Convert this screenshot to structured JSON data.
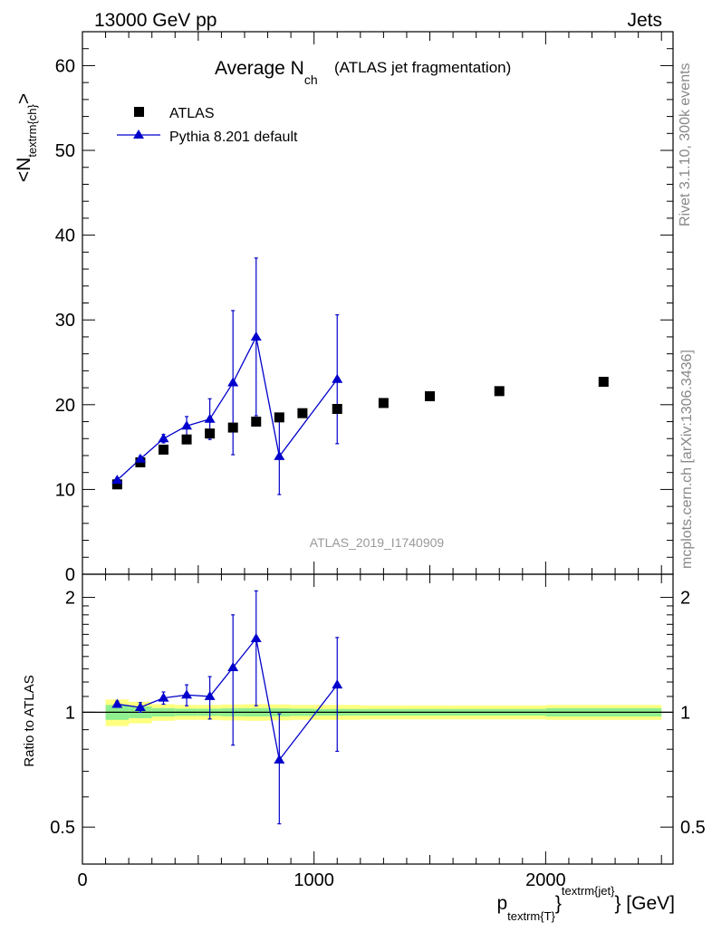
{
  "header": {
    "left": "13000 GeV pp",
    "right": "Jets"
  },
  "side_labels": {
    "rivet": "Rivet 3.1.10,  300k events",
    "mcplots": "mcplots.cern.ch [arXiv:1306.3436]"
  },
  "colors": {
    "data": "#000000",
    "mc": "#0000cc",
    "band_inner": "#8fef8f",
    "band_outer": "#ffff80",
    "analysis_label": "#999999"
  },
  "chart_data": [
    {
      "type": "scatter",
      "panel": "main",
      "title": "Average N",
      "title_sub": "ch",
      "title_note": "(ATLAS jet fragmentation)",
      "ylabel_main": "<N",
      "ylabel_sub": "textrm{ch}",
      "ylabel_end": ">",
      "analysis": "ATLAS_2019_I1740909",
      "xlim": [
        0,
        2550
      ],
      "ylim": [
        0,
        64
      ],
      "y_ticks": [
        "0",
        "10",
        "20",
        "30",
        "40",
        "50",
        "60"
      ],
      "legend_position": "top-left",
      "series": [
        {
          "name": "ATLAS",
          "marker": "square",
          "x": [
            150,
            250,
            350,
            450,
            550,
            650,
            750,
            850,
            950,
            1100,
            1300,
            1500,
            1800,
            2250
          ],
          "y": [
            10.6,
            13.2,
            14.7,
            15.9,
            16.6,
            17.3,
            18.0,
            18.5,
            19.0,
            19.5,
            20.2,
            21.0,
            21.6,
            22.7
          ]
        },
        {
          "name": "Pythia 8.201 default",
          "marker": "triangle",
          "line": true,
          "x": [
            150,
            250,
            350,
            450,
            550,
            650,
            750,
            850,
            1100
          ],
          "y": [
            11.1,
            13.6,
            16.0,
            17.5,
            18.3,
            22.6,
            28.0,
            13.9,
            23.0
          ],
          "err": [
            0.2,
            0.35,
            0.5,
            1.1,
            2.4,
            8.5,
            9.3,
            4.5,
            7.6
          ]
        }
      ]
    },
    {
      "type": "scatter",
      "panel": "ratio",
      "ylabel": "Ratio to ATLAS",
      "xlabel_main": "p",
      "xlabel_sub": "textrm{T}",
      "xlabel_sup": "textrm{jet}",
      "xlabel_unit": "[GeV]",
      "xlim": [
        0,
        2550
      ],
      "ylim": [
        0.4,
        2.3
      ],
      "log_y": true,
      "x_ticks": [
        "0",
        "1000",
        "2000"
      ],
      "y_ticks": [
        "0.5",
        "1",
        "2"
      ],
      "band": {
        "bin_edges": [
          100,
          200,
          300,
          400,
          500,
          600,
          700,
          800,
          900,
          1000,
          1200,
          1400,
          1600,
          2000,
          2500
        ],
        "inner": [
          0.045,
          0.035,
          0.025,
          0.022,
          0.022,
          0.024,
          0.025,
          0.024,
          0.022,
          0.02,
          0.02,
          0.02,
          0.02,
          0.025
        ],
        "outer": [
          0.08,
          0.065,
          0.05,
          0.045,
          0.045,
          0.048,
          0.05,
          0.048,
          0.045,
          0.045,
          0.042,
          0.042,
          0.042,
          0.045
        ]
      },
      "series": [
        {
          "name": "Pythia 8.201 default",
          "x": [
            150,
            250,
            350,
            450,
            550,
            650,
            750,
            850,
            1100
          ],
          "y": [
            1.05,
            1.03,
            1.09,
            1.11,
            1.1,
            1.31,
            1.56,
            0.75,
            1.18
          ],
          "err": [
            0.02,
            0.03,
            0.04,
            0.07,
            0.14,
            0.49,
            0.52,
            0.24,
            0.39
          ]
        }
      ]
    }
  ]
}
